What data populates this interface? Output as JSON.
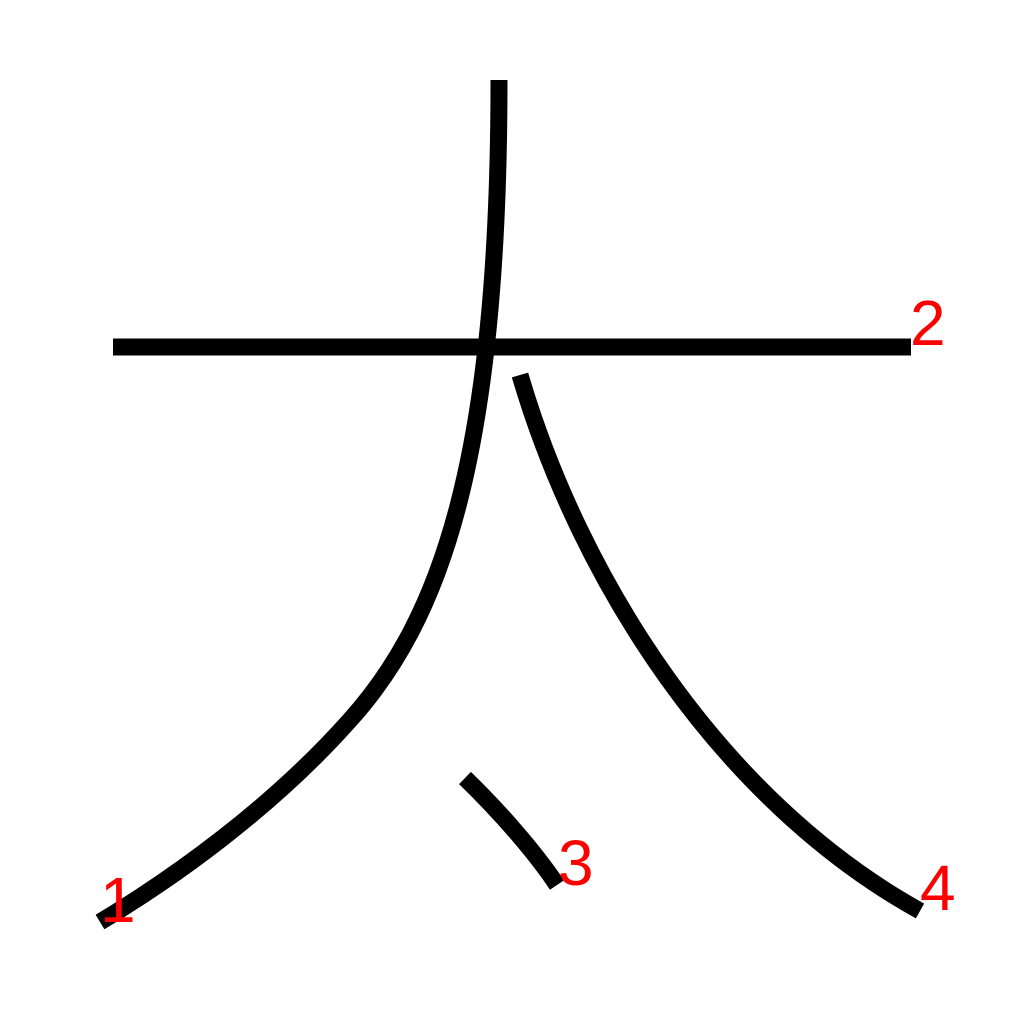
{
  "strokes": [
    {
      "label": "1"
    },
    {
      "label": "2"
    },
    {
      "label": "3"
    },
    {
      "label": "4"
    }
  ]
}
